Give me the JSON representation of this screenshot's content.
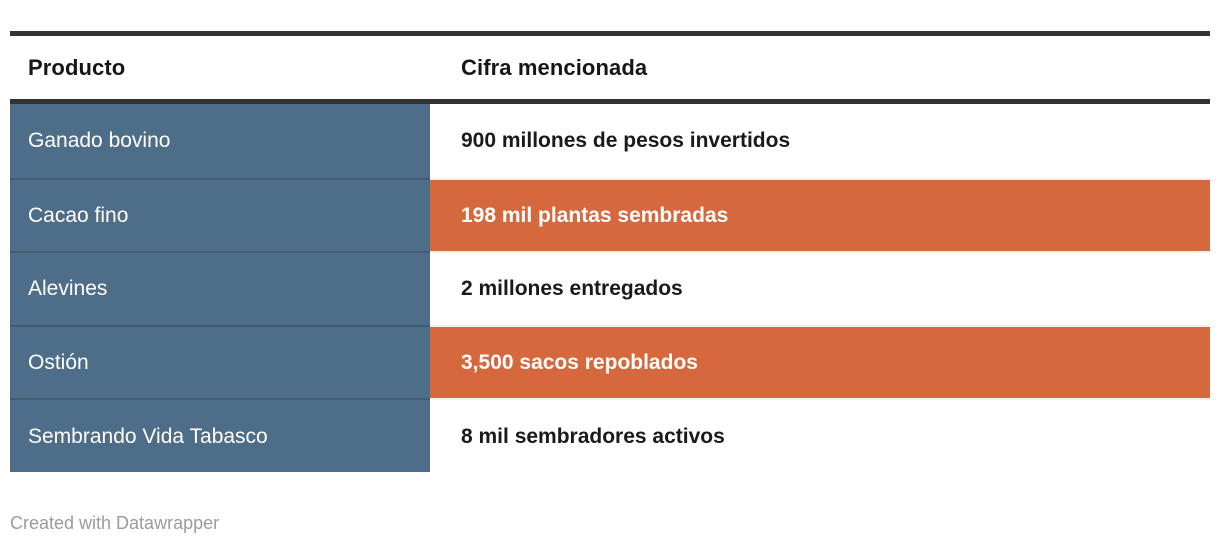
{
  "chart_data": {
    "type": "table",
    "columns": [
      "Producto",
      "Cifra mencionada"
    ],
    "rows": [
      {
        "producto": "Ganado bovino",
        "cifra": "900 millones de pesos invertidos",
        "highlight": false
      },
      {
        "producto": "Cacao fino",
        "cifra": "198 mil plantas sembradas",
        "highlight": true
      },
      {
        "producto": "Alevines",
        "cifra": "2 millones entregados",
        "highlight": false
      },
      {
        "producto": "Ostión",
        "cifra": "3,500 sacos repoblados",
        "highlight": true
      },
      {
        "producto": "Sembrando Vida Tabasco",
        "cifra": "8 mil sembradores activos",
        "highlight": false
      }
    ],
    "legend_position": "none",
    "grid": "row-separators"
  },
  "footer": {
    "attribution": "Created with Datawrapper"
  },
  "colors": {
    "rule": "#333333",
    "product_column_bg": "#4e6d89",
    "highlight_bg": "#d5693d",
    "row_text_light": "#ffffff",
    "row_text_dark": "#1a1a1a",
    "attribution_gray": "#9b9b9b"
  }
}
